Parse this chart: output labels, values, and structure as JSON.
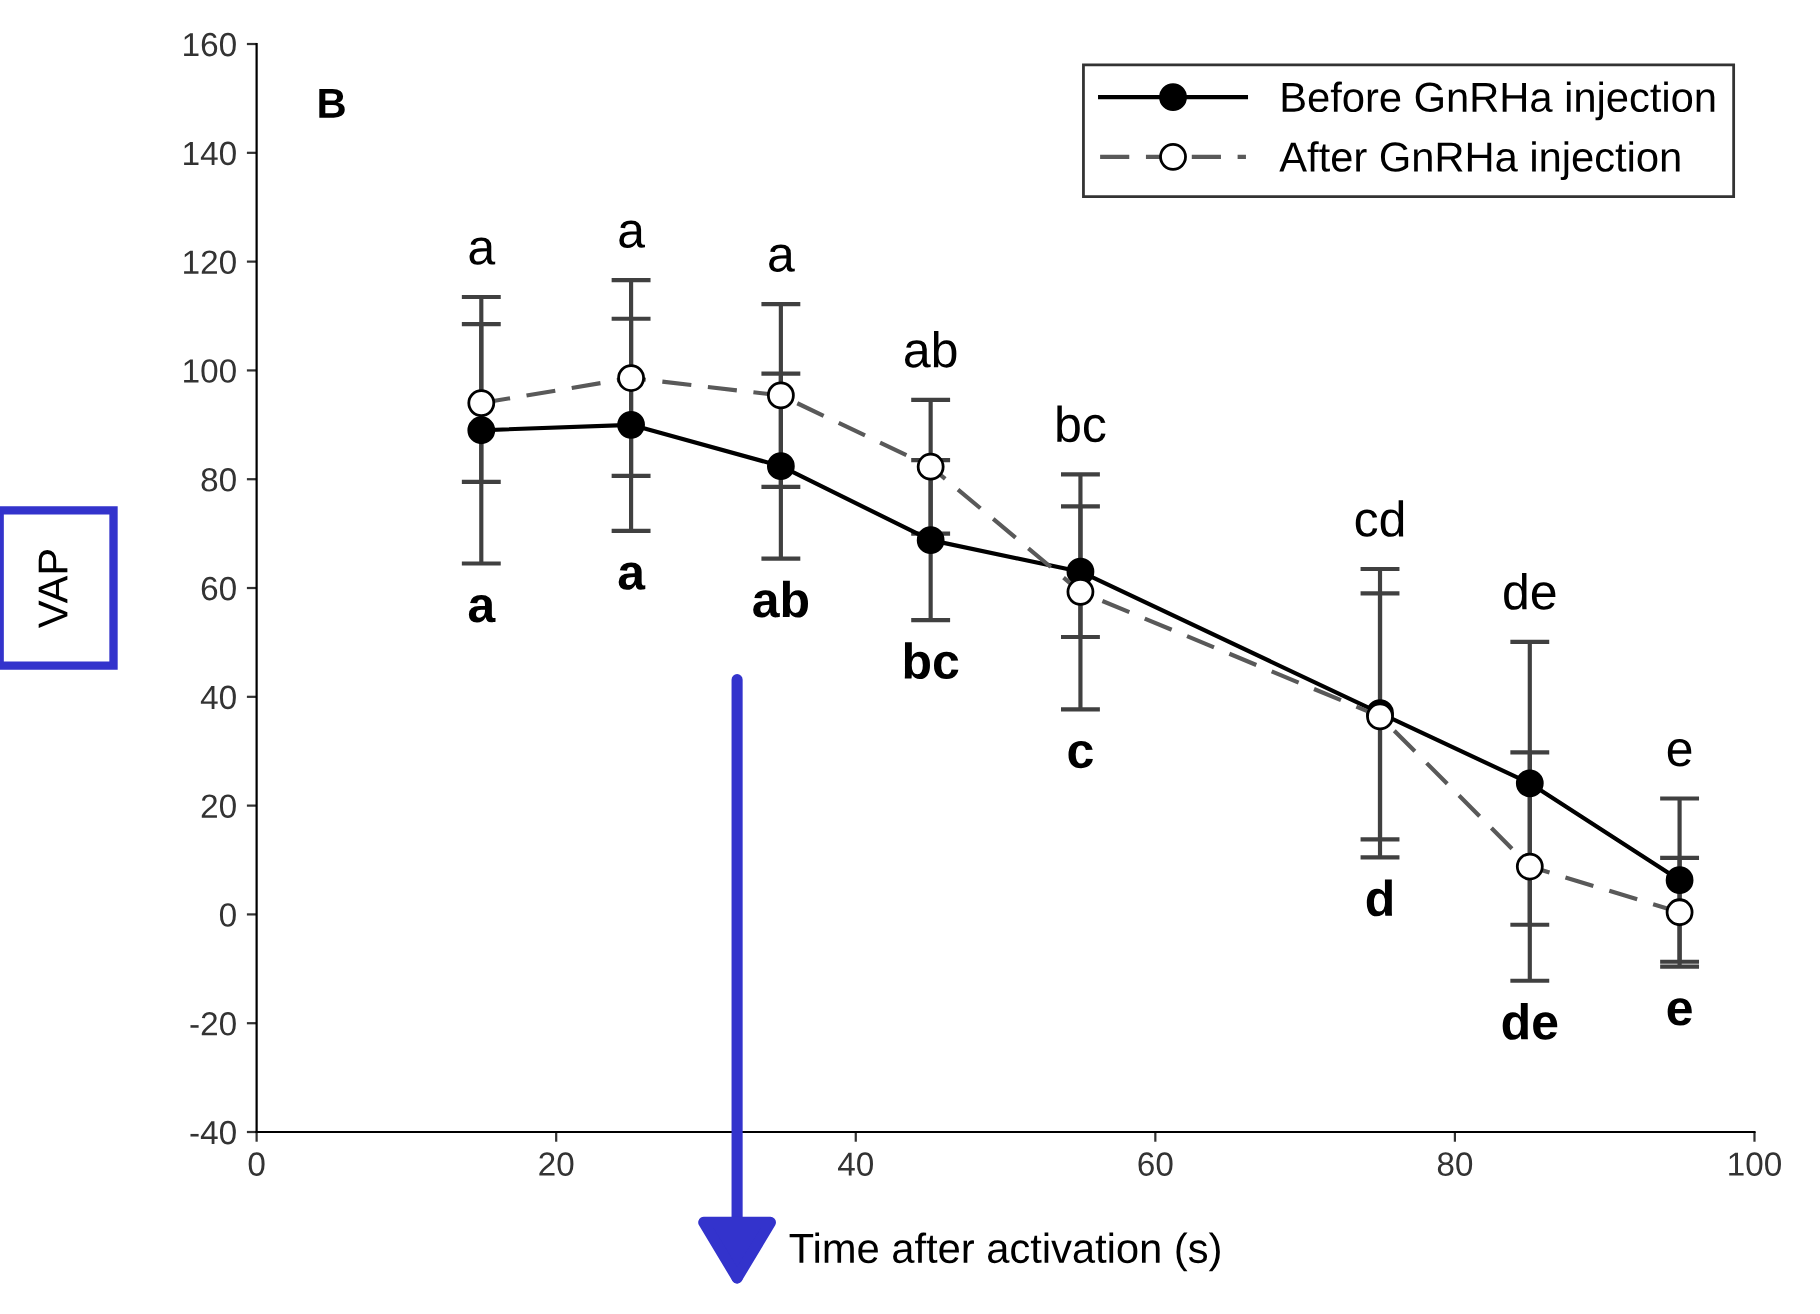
{
  "chart_data": {
    "type": "line",
    "xlabel": "Time after activation (s)",
    "ylabel": "VAP",
    "x": [
      15,
      25,
      35,
      45,
      55,
      75,
      85,
      95
    ],
    "xlim": [
      0,
      100
    ],
    "xticks": [
      0,
      20,
      40,
      60,
      80,
      100
    ],
    "ylim": [
      -40,
      160
    ],
    "yticks": [
      -40,
      -20,
      0,
      20,
      40,
      60,
      80,
      100,
      120,
      140,
      160
    ],
    "grid": false,
    "legend": "top right",
    "marker": "circle",
    "series": [
      {
        "name": "Before GnRHa injection",
        "color": "#000000",
        "line_style": "solid",
        "values": [
          89,
          90,
          82.4,
          68.8,
          63,
          37,
          24.1,
          6.3
        ],
        "errors": [
          24.5,
          19.5,
          17,
          14.7,
          12,
          26.5,
          26,
          15
        ]
      },
      {
        "name": "After GnRHa injection",
        "color": "#595959",
        "line_style": "dashed",
        "values": [
          94,
          98.6,
          95.4,
          82.3,
          59.3,
          36.4,
          8.8,
          0.4
        ],
        "errors": [
          14.5,
          18,
          16.8,
          12.3,
          21.6,
          22.6,
          21,
          10
        ]
      }
    ],
    "annotations": [
      "B",
      "a",
      "a",
      "a",
      "ab",
      "bc",
      "cd",
      "de",
      "e",
      "a",
      "a",
      "ab",
      "bc",
      "c",
      "d",
      "de",
      "e"
    ]
  }
}
